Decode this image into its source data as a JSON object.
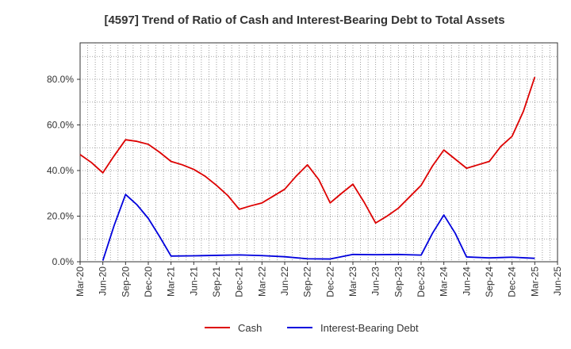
{
  "chart_data": {
    "type": "line",
    "title": "[4597]  Trend of Ratio of Cash and Interest-Bearing Debt to Total Assets",
    "xlabel": "",
    "ylabel": "",
    "ylim": [
      0,
      96
    ],
    "yticks": [
      0,
      20,
      40,
      60,
      80
    ],
    "ytick_labels": [
      "0.0%",
      "20.0%",
      "40.0%",
      "60.0%",
      "80.0%"
    ],
    "x_tick_labels": [
      "Mar-20",
      "Jun-20",
      "Sep-20",
      "Dec-20",
      "Mar-21",
      "Jun-21",
      "Sep-21",
      "Dec-21",
      "Mar-22",
      "Jun-22",
      "Sep-22",
      "Dec-22",
      "Mar-23",
      "Jun-23",
      "Sep-23",
      "Dec-23",
      "Mar-24",
      "Jun-24",
      "Sep-24",
      "Dec-24",
      "Mar-25",
      "Jun-25"
    ],
    "grid": true,
    "legend_position": "bottom-center",
    "series": [
      {
        "name": "Cash",
        "color": "#dd0000",
        "points": [
          [
            0,
            47.0
          ],
          [
            0.5,
            43.5
          ],
          [
            1,
            39.0
          ],
          [
            1.5,
            46.5
          ],
          [
            2,
            53.5
          ],
          [
            2.5,
            52.8
          ],
          [
            3,
            51.5
          ],
          [
            3.5,
            48.0
          ],
          [
            4,
            44.0
          ],
          [
            4.5,
            42.5
          ],
          [
            5,
            40.5
          ],
          [
            5.5,
            37.5
          ],
          [
            6,
            33.5
          ],
          [
            6.5,
            29.0
          ],
          [
            7,
            23.0
          ],
          [
            7.5,
            24.5
          ],
          [
            8,
            25.8
          ],
          [
            8.5,
            28.8
          ],
          [
            9,
            31.8
          ],
          [
            9.5,
            37.5
          ],
          [
            10,
            42.5
          ],
          [
            10.5,
            36.0
          ],
          [
            11,
            25.8
          ],
          [
            11.5,
            30.0
          ],
          [
            12,
            34.0
          ],
          [
            12.5,
            26.0
          ],
          [
            13,
            17.0
          ],
          [
            13.5,
            20.0
          ],
          [
            14,
            23.5
          ],
          [
            14.5,
            28.5
          ],
          [
            15,
            33.5
          ],
          [
            15.5,
            42.0
          ],
          [
            16,
            49.0
          ],
          [
            16.5,
            45.0
          ],
          [
            17,
            41.0
          ],
          [
            17.5,
            42.5
          ],
          [
            18,
            44.0
          ],
          [
            18.5,
            50.5
          ],
          [
            19,
            55.0
          ],
          [
            19.5,
            66.0
          ],
          [
            20,
            81.0
          ]
        ]
      },
      {
        "name": "Interest-Bearing Debt",
        "color": "#0000dd",
        "points": [
          [
            1,
            0.5
          ],
          [
            1.5,
            16.0
          ],
          [
            2,
            29.5
          ],
          [
            2.5,
            25.0
          ],
          [
            3,
            19.0
          ],
          [
            3.5,
            11.0
          ],
          [
            4,
            2.5
          ],
          [
            5,
            2.6
          ],
          [
            6,
            2.8
          ],
          [
            7,
            3.0
          ],
          [
            8,
            2.7
          ],
          [
            9,
            2.2
          ],
          [
            10,
            1.3
          ],
          [
            11,
            1.2
          ],
          [
            12,
            3.2
          ],
          [
            13,
            3.1
          ],
          [
            14,
            3.2
          ],
          [
            15,
            2.9
          ],
          [
            15.5,
            12.5
          ],
          [
            16,
            20.5
          ],
          [
            16.5,
            12.5
          ],
          [
            17,
            2.1
          ],
          [
            18,
            1.7
          ],
          [
            19,
            2.0
          ],
          [
            20,
            1.5
          ]
        ]
      }
    ]
  }
}
